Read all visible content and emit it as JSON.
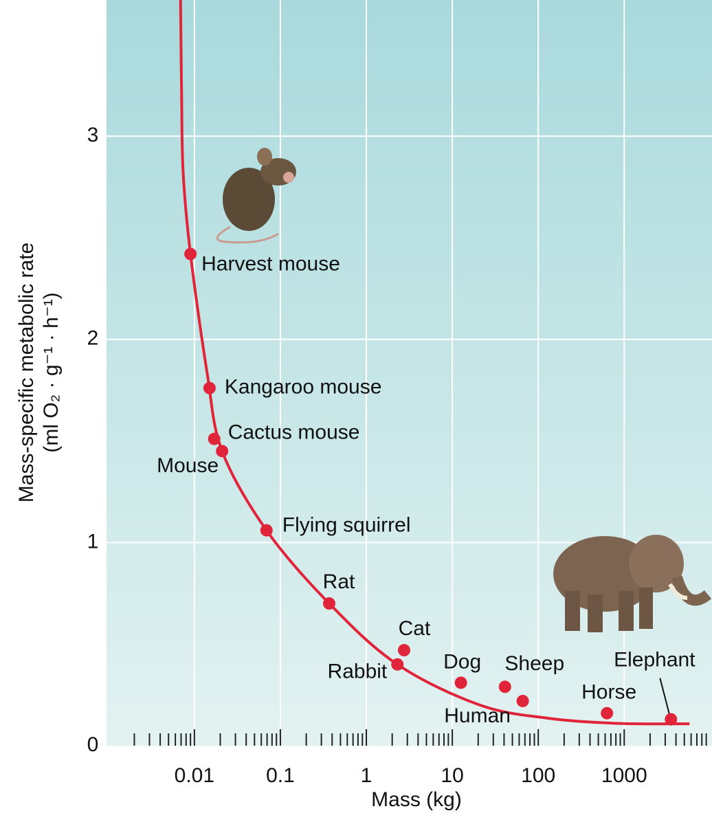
{
  "chart_data": {
    "type": "scatter",
    "x_label": "Mass (kg)",
    "y_label": [
      "Mass-specific metabolic rate",
      "(ml O₂ · g⁻¹ · h⁻¹)"
    ],
    "x_log": true,
    "xlim": [
      0.00095,
      10500
    ],
    "ylim": [
      0,
      3.67
    ],
    "xticks": [
      0.01,
      0.1,
      1,
      10,
      100,
      1000
    ],
    "xminorticks": [
      0.002,
      0.003,
      0.004,
      0.005,
      0.006,
      0.007,
      0.008,
      0.009,
      0.02,
      0.03,
      0.04,
      0.05,
      0.06,
      0.07,
      0.08,
      0.09,
      0.2,
      0.3,
      0.4,
      0.5,
      0.6,
      0.7,
      0.8,
      0.9,
      2,
      3,
      4,
      5,
      6,
      7,
      8,
      9,
      20,
      30,
      40,
      50,
      60,
      70,
      80,
      90,
      200,
      300,
      400,
      500,
      600,
      700,
      800,
      900,
      2000,
      3000,
      4000,
      5000,
      6000,
      7000,
      8000,
      9000
    ],
    "yticks": [
      0,
      1,
      2,
      3
    ],
    "grid": true,
    "color": "#e0243a",
    "labels": [
      "Harvest mouse",
      "Kangaroo mouse",
      "Cactus mouse",
      "Mouse",
      "Flying squirrel",
      "Rat",
      "Cat",
      "Rabbit",
      "Dog",
      "Sheep",
      "Human",
      "Horse",
      "Elephant"
    ],
    "x": [
      0.009,
      0.015,
      0.017,
      0.021,
      0.069,
      0.37,
      2.75,
      2.3,
      12.6,
      41,
      66,
      630,
      3500
    ],
    "y": [
      2.42,
      1.76,
      1.51,
      1.45,
      1.06,
      0.7,
      0.47,
      0.4,
      0.31,
      0.29,
      0.22,
      0.16,
      0.13
    ],
    "curve": {
      "x": [
        0.0069,
        0.0071,
        0.0074,
        0.009,
        0.014,
        0.021,
        0.069,
        0.37,
        2.3,
        21,
        132,
        830,
        5750
      ],
      "y": [
        3.67,
        3.2,
        2.82,
        2.42,
        1.84,
        1.45,
        1.06,
        0.7,
        0.4,
        0.2,
        0.135,
        0.11,
        0.108
      ]
    }
  }
}
